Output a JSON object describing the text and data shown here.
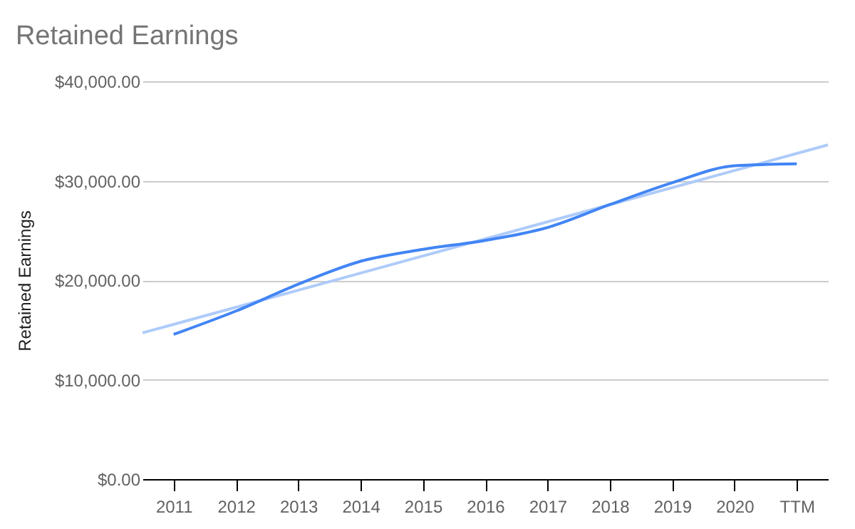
{
  "chart_data": {
    "type": "line",
    "title": "Retained Earnings",
    "ylabel": "Retained Earnings",
    "x": [
      2011,
      2012,
      2013,
      2014,
      2015,
      2016,
      2017,
      2018,
      2019,
      2020,
      2021
    ],
    "series": [
      {
        "color": "#4285f4",
        "values": [
          14550,
          16900,
          19600,
          21900,
          23100,
          24000,
          25300,
          27600,
          29800,
          31500,
          31700
        ]
      },
      {
        "type": "line",
        "color": "#aecbfa",
        "x": [
          2010.5,
          2021.5
        ],
        "values": [
          14700,
          33600
        ]
      }
    ],
    "xlim": [
      2010.5,
      2021.5
    ],
    "xticks": [
      2011,
      2012,
      2013,
      2014,
      2015,
      2016,
      2017,
      2018,
      2019,
      2020,
      {
        "value": 2021,
        "label": "TTM"
      }
    ],
    "ylim": [
      0,
      40000
    ],
    "yticks": [
      {
        "value": 0,
        "label": "$0.00"
      },
      {
        "value": 10000,
        "label": "$10,000.00"
      },
      {
        "value": 20000,
        "label": "$20,000.00"
      },
      {
        "value": 30000,
        "label": "$30,000.00"
      },
      {
        "value": 40000,
        "label": "$40,000.00"
      }
    ],
    "grid": "y",
    "marker": "none",
    "line_style": "solid"
  }
}
